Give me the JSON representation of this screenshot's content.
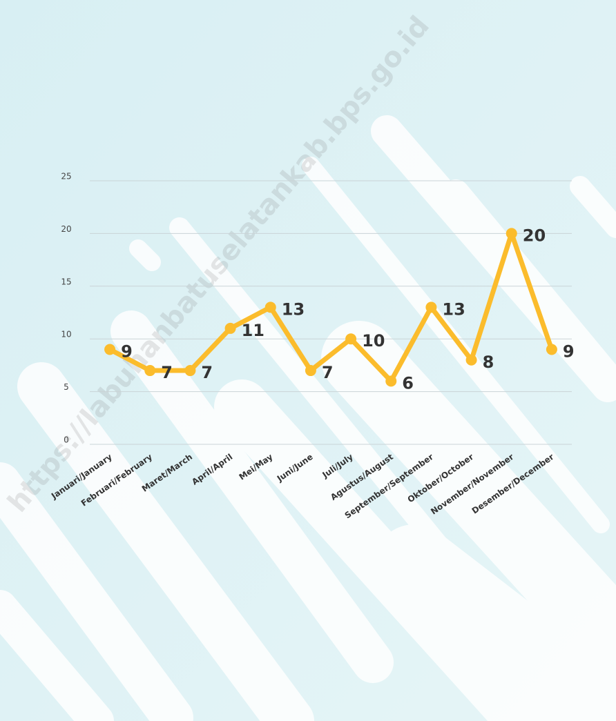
{
  "chart_data": {
    "type": "line",
    "watermark": "https://labuhanbatuselatankab.bps.go.id",
    "categories": [
      "Januari/January",
      "Februari/February",
      "Maret/March",
      "April/April",
      "Mei/May",
      "Juni/June",
      "Juli/July",
      "Agustus/August",
      "September/September",
      "Oktober/October",
      "November/November",
      "Desember/December"
    ],
    "values": [
      9,
      7,
      7,
      11,
      13,
      7,
      10,
      6,
      13,
      8,
      20,
      9
    ],
    "color": "#fbbc2c",
    "ylim": [
      0,
      25
    ],
    "yticks": [
      0,
      5,
      10,
      15,
      20,
      25
    ],
    "grid": true
  }
}
